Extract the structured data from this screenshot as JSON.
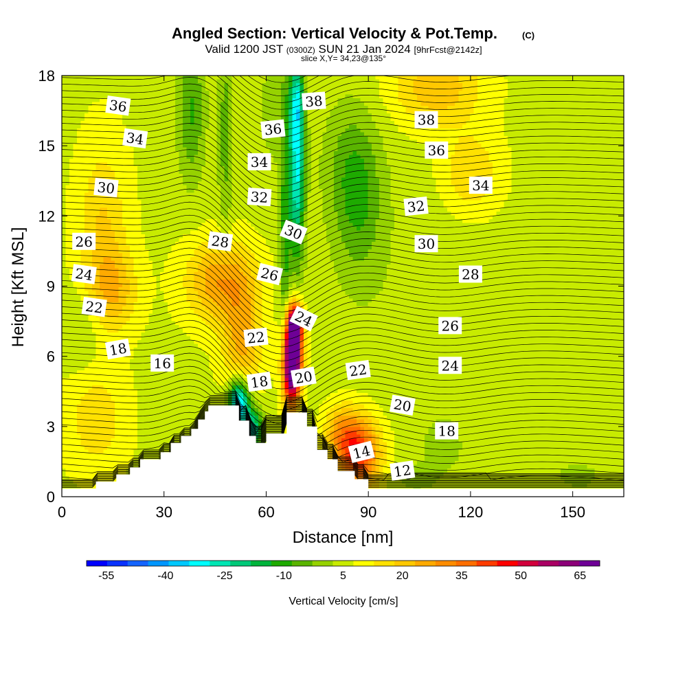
{
  "chart_data": {
    "type": "heatmap",
    "title": "Angled Section: Vertical Velocity & Pot.Temp.",
    "title_mark": "(C)",
    "subtitle_parts": [
      "Valid 1200 JST",
      "(0300Z)",
      "SUN 21 Jan 2024",
      "[9hrFcst@2142z]"
    ],
    "slice_text": "slice X,Y= 34,23@135°",
    "xlabel": "Distance [nm]",
    "ylabel": "Height [Kft MSL]",
    "xlim": [
      0,
      165
    ],
    "ylim": [
      0,
      18
    ],
    "x_ticks": [
      0,
      30,
      60,
      90,
      120,
      150
    ],
    "y_ticks": [
      0,
      3,
      6,
      9,
      12,
      15,
      18
    ],
    "colorbar": {
      "label": "Vertical Velocity [cm/s]",
      "tick_labels": [
        "-55",
        "-40",
        "-25",
        "-10",
        "5",
        "20",
        "35",
        "50",
        "65"
      ],
      "tick_values": [
        -55,
        -40,
        -25,
        -10,
        5,
        20,
        35,
        50,
        65
      ],
      "colors": [
        "#0000ff",
        "#0a32ff",
        "#1464ff",
        "#0096ff",
        "#00c8ff",
        "#00ffff",
        "#00e6b4",
        "#00c878",
        "#00b43c",
        "#1eaa00",
        "#5ab400",
        "#96d200",
        "#c8eb00",
        "#ffff00",
        "#ffe100",
        "#ffc800",
        "#ffaa00",
        "#ff8c00",
        "#ff6e00",
        "#ff3c00",
        "#ff0000",
        "#d2003c",
        "#aa0064",
        "#8c0078",
        "#6e0096"
      ],
      "range": [
        -60,
        70
      ]
    },
    "terrain_profile": [
      [
        0,
        0.35
      ],
      [
        10,
        0.35
      ],
      [
        10,
        0.65
      ],
      [
        16,
        0.65
      ],
      [
        16,
        0.95
      ],
      [
        20,
        0.95
      ],
      [
        20,
        1.25
      ],
      [
        23,
        1.25
      ],
      [
        23,
        1.6
      ],
      [
        29,
        1.6
      ],
      [
        29,
        1.9
      ],
      [
        32,
        1.9
      ],
      [
        32,
        2.3
      ],
      [
        35,
        2.3
      ],
      [
        35,
        2.6
      ],
      [
        38,
        2.6
      ],
      [
        38,
        2.9
      ],
      [
        40,
        2.9
      ],
      [
        40,
        3.3
      ],
      [
        42,
        3.3
      ],
      [
        42,
        3.65
      ],
      [
        43,
        3.65
      ],
      [
        43,
        3.9
      ],
      [
        52,
        3.9
      ],
      [
        52,
        3.25
      ],
      [
        55,
        3.25
      ],
      [
        55,
        2.6
      ],
      [
        57,
        2.6
      ],
      [
        57,
        2.3
      ],
      [
        60,
        2.3
      ],
      [
        60,
        2.7
      ],
      [
        66,
        2.7
      ],
      [
        66,
        3.6
      ],
      [
        72,
        3.6
      ],
      [
        72,
        3.0
      ],
      [
        75,
        3.0
      ],
      [
        75,
        2.0
      ],
      [
        78,
        2.0
      ],
      [
        78,
        1.6
      ],
      [
        81,
        1.6
      ],
      [
        81,
        1.1
      ],
      [
        86,
        1.1
      ],
      [
        86,
        0.75
      ],
      [
        90,
        0.75
      ],
      [
        90,
        0.35
      ],
      [
        165,
        0.35
      ]
    ],
    "velocity_features": [
      {
        "x": 68,
        "y": 6.0,
        "sx": 1.8,
        "sy": 1.2,
        "value": 72
      },
      {
        "x": 68.5,
        "y": 7.4,
        "sx": 1.6,
        "sy": 0.6,
        "value": 40
      },
      {
        "x": 66.5,
        "y": 5.2,
        "sx": 1.5,
        "sy": 1.4,
        "value": 25
      },
      {
        "x": 87,
        "y": 1.8,
        "sx": 4.5,
        "sy": 1.1,
        "value": 38
      },
      {
        "x": 82,
        "y": 2.8,
        "sx": 3.5,
        "sy": 0.8,
        "value": 15
      },
      {
        "x": 47,
        "y": 9.2,
        "sx": 7,
        "sy": 1.2,
        "value": 22
      },
      {
        "x": 53,
        "y": 6.6,
        "sx": 4,
        "sy": 1.5,
        "value": 18
      },
      {
        "x": 12,
        "y": 11.5,
        "sx": 5,
        "sy": 2.5,
        "value": 12
      },
      {
        "x": 15,
        "y": 8.8,
        "sx": 5,
        "sy": 1.2,
        "value": 14
      },
      {
        "x": 110,
        "y": 17.5,
        "sx": 9,
        "sy": 1.2,
        "value": 16
      },
      {
        "x": 120,
        "y": 13.8,
        "sx": 6,
        "sy": 1.2,
        "value": 12
      },
      {
        "x": 10,
        "y": 3.3,
        "sx": 6,
        "sy": 1.5,
        "value": 10
      },
      {
        "x": 52,
        "y": 4.0,
        "sx": 2.2,
        "sy": 0.7,
        "value": -45
      },
      {
        "x": 56,
        "y": 2.9,
        "sx": 2.2,
        "sy": 0.6,
        "value": -30
      },
      {
        "x": 69,
        "y": 14.0,
        "sx": 1.6,
        "sy": 2.8,
        "value": -35
      },
      {
        "x": 69,
        "y": 17.0,
        "sx": 1.5,
        "sy": 1.2,
        "value": -18
      },
      {
        "x": 65.5,
        "y": 11.0,
        "sx": 1.2,
        "sy": 4.5,
        "value": -15
      },
      {
        "x": 38,
        "y": 16.5,
        "sx": 3,
        "sy": 2.2,
        "value": -15
      },
      {
        "x": 48,
        "y": 15.5,
        "sx": 1.5,
        "sy": 3,
        "value": -12
      },
      {
        "x": 87,
        "y": 12.5,
        "sx": 5,
        "sy": 2.2,
        "value": -12
      },
      {
        "x": 84,
        "y": 14.5,
        "sx": 6,
        "sy": 2,
        "value": -7
      },
      {
        "x": 112,
        "y": 2.2,
        "sx": 4,
        "sy": 0.8,
        "value": -8
      },
      {
        "x": 6,
        "y": 7.2,
        "sx": 4,
        "sy": 1.2,
        "value": -6
      },
      {
        "x": 62,
        "y": 16.5,
        "sx": 4,
        "sy": 2,
        "value": -6
      },
      {
        "x": 104,
        "y": 0.8,
        "sx": 5,
        "sy": 0.5,
        "value": -6
      },
      {
        "x": 150,
        "y": 0.9,
        "sx": 5,
        "sy": 0.5,
        "value": -5
      }
    ],
    "isotherm_pitch_kft": 0.28,
    "contour_labels": [
      {
        "text": "36",
        "x": 16.5,
        "y": 16.7,
        "angle": 8
      },
      {
        "text": "34",
        "x": 21.5,
        "y": 15.3,
        "angle": 8
      },
      {
        "text": "30",
        "x": 13,
        "y": 13.2,
        "angle": 6
      },
      {
        "text": "26",
        "x": 6.5,
        "y": 10.9,
        "angle": 0
      },
      {
        "text": "24",
        "x": 6.5,
        "y": 9.5,
        "angle": 8
      },
      {
        "text": "22",
        "x": 9.5,
        "y": 8.1,
        "angle": 8
      },
      {
        "text": "18",
        "x": 16.5,
        "y": 6.3,
        "angle": -10
      },
      {
        "text": "16",
        "x": 29.5,
        "y": 5.7,
        "angle": 0
      },
      {
        "text": "38",
        "x": 74,
        "y": 16.9,
        "angle": -4
      },
      {
        "text": "36",
        "x": 62,
        "y": 15.7,
        "angle": -6
      },
      {
        "text": "34",
        "x": 58,
        "y": 14.3,
        "angle": 0
      },
      {
        "text": "32",
        "x": 58,
        "y": 12.8,
        "angle": 4
      },
      {
        "text": "30",
        "x": 68,
        "y": 11.3,
        "angle": 22
      },
      {
        "text": "28",
        "x": 46.5,
        "y": 10.9,
        "angle": 8
      },
      {
        "text": "26",
        "x": 61,
        "y": 9.5,
        "angle": 14
      },
      {
        "text": "24",
        "x": 71,
        "y": 7.6,
        "angle": 26
      },
      {
        "text": "22",
        "x": 57,
        "y": 6.8,
        "angle": -6
      },
      {
        "text": "20",
        "x": 71,
        "y": 5.1,
        "angle": -10
      },
      {
        "text": "18",
        "x": 58,
        "y": 4.9,
        "angle": -8
      },
      {
        "text": "22",
        "x": 87,
        "y": 5.4,
        "angle": -8
      },
      {
        "text": "20",
        "x": 100,
        "y": 3.9,
        "angle": 10
      },
      {
        "text": "18",
        "x": 113,
        "y": 2.8,
        "angle": 0
      },
      {
        "text": "14",
        "x": 88,
        "y": 1.9,
        "angle": -14
      },
      {
        "text": "12",
        "x": 100,
        "y": 1.1,
        "angle": -8
      },
      {
        "text": "38",
        "x": 107,
        "y": 16.1,
        "angle": 0
      },
      {
        "text": "36",
        "x": 110,
        "y": 14.8,
        "angle": 0
      },
      {
        "text": "34",
        "x": 123,
        "y": 13.3,
        "angle": 0
      },
      {
        "text": "32",
        "x": 104,
        "y": 12.4,
        "angle": -6
      },
      {
        "text": "30",
        "x": 107,
        "y": 10.8,
        "angle": 0
      },
      {
        "text": "28",
        "x": 120,
        "y": 9.5,
        "angle": 0
      },
      {
        "text": "26",
        "x": 114,
        "y": 7.3,
        "angle": 0
      },
      {
        "text": "24",
        "x": 114,
        "y": 5.6,
        "angle": 0
      }
    ]
  }
}
